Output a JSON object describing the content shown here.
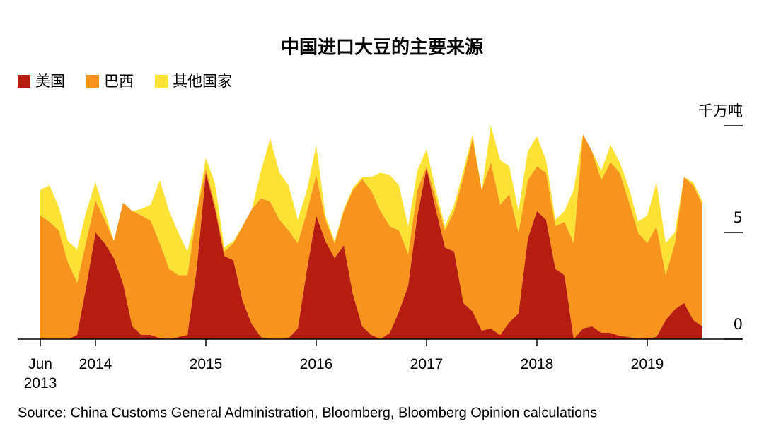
{
  "chart_data": {
    "type": "stacked_area",
    "title": "中国进口大豆的主要来源",
    "source": "Source: China Customs General Administration, Bloomberg, Bloomberg Opinion calculations",
    "legend": "top-left",
    "x": [
      2013.5,
      2013.583,
      2013.667,
      2013.75,
      2013.833,
      2013.917,
      2014,
      2014.083,
      2014.167,
      2014.25,
      2014.333,
      2014.417,
      2014.5,
      2014.583,
      2014.667,
      2014.75,
      2014.833,
      2014.917,
      2015,
      2015.083,
      2015.167,
      2015.25,
      2015.333,
      2015.417,
      2015.5,
      2015.583,
      2015.667,
      2015.75,
      2015.833,
      2015.917,
      2016,
      2016.083,
      2016.167,
      2016.25,
      2016.333,
      2016.417,
      2016.5,
      2016.583,
      2016.667,
      2016.75,
      2016.833,
      2016.917,
      2017,
      2017.083,
      2017.167,
      2017.25,
      2017.333,
      2017.417,
      2017.5,
      2017.583,
      2017.667,
      2017.75,
      2017.833,
      2017.917,
      2018,
      2018.083,
      2018.167,
      2018.25,
      2018.333,
      2018.417,
      2018.5,
      2018.583,
      2018.667,
      2018.75,
      2018.833,
      2018.917,
      2019,
      2019.083,
      2019.167,
      2019.25,
      2019.333,
      2019.417,
      2019.5
    ],
    "series": [
      {
        "name": "美国",
        "color": "#b51c12",
        "values": [
          0,
          0,
          0,
          0,
          0.2,
          2.5,
          5.0,
          4.5,
          3.8,
          2.6,
          0.6,
          0.2,
          0.2,
          0.05,
          0,
          0.1,
          0.2,
          3.3,
          7.8,
          6.1,
          3.9,
          3.7,
          1.8,
          0.7,
          0.1,
          0,
          0,
          0.05,
          0.5,
          3.3,
          5.8,
          4.6,
          3.8,
          4.4,
          2.1,
          0.6,
          0.2,
          0,
          0.3,
          1.3,
          2.5,
          5.8,
          8.0,
          6.1,
          4.3,
          4.1,
          1.7,
          1.3,
          0.4,
          0.5,
          0.2,
          0.8,
          1.2,
          4.7,
          6.0,
          5.6,
          3.3,
          3.0,
          0,
          0.5,
          0.6,
          0.3,
          0.3,
          0.15,
          0.1,
          0,
          0.05,
          0.1,
          0.9,
          1.4,
          1.7,
          0.9,
          0.6
        ]
      },
      {
        "name": "巴西",
        "color": "#f7941d",
        "values": [
          5.8,
          5.5,
          5.1,
          3.6,
          2.45,
          2.1,
          1.5,
          1.1,
          0.8,
          3.8,
          5.4,
          5.6,
          5.35,
          4.45,
          3.3,
          2.9,
          2.8,
          2.6,
          0.2,
          0.2,
          0.2,
          0.8,
          3.5,
          5.4,
          6.5,
          6.45,
          5.6,
          5.05,
          4.0,
          2.7,
          1.9,
          1.0,
          0.7,
          1.6,
          4.9,
          6.9,
          6.75,
          6.0,
          5.0,
          3.8,
          1.5,
          1.2,
          0.1,
          0.5,
          0.8,
          1.9,
          5.9,
          8.1,
          6.6,
          7.8,
          6.1,
          6.0,
          3.8,
          2.75,
          2.1,
          2.2,
          2.0,
          2.5,
          4.5,
          9.1,
          8.2,
          7.15,
          8.0,
          7.65,
          6.35,
          5.0,
          4.45,
          5.2,
          2.1,
          3.1,
          5.9,
          6.3,
          5.7
        ]
      },
      {
        "name": "其他国家",
        "color": "#fde236",
        "values": [
          1.2,
          1.7,
          1.1,
          1.0,
          1.55,
          1.4,
          0.85,
          0.4,
          0,
          0,
          0,
          0.3,
          0.75,
          2.95,
          2.7,
          2.0,
          1.1,
          0.1,
          0.5,
          1.0,
          0.2,
          0.1,
          0,
          0,
          1.3,
          2.95,
          2.2,
          2.1,
          1.1,
          1.0,
          1.4,
          0.2,
          0.1,
          0.1,
          0.1,
          0.1,
          0.65,
          1.8,
          2.4,
          2.1,
          1.3,
          0.9,
          0.8,
          0.4,
          0.2,
          0.3,
          0.3,
          0.2,
          0,
          1.7,
          2.1,
          1.3,
          1.0,
          1.35,
          1.4,
          0.6,
          0.3,
          0.5,
          2.5,
          0,
          0,
          0.45,
          0.8,
          0.5,
          0.65,
          0.5,
          1.3,
          2.05,
          1.5,
          0.5,
          0,
          0.15,
          0.15
        ]
      }
    ],
    "xlim": [
      2013.5,
      2019.5
    ],
    "xticks": [
      {
        "value": 2013.5,
        "label": "Jun 2013"
      },
      2014,
      2015,
      2016,
      2017,
      2018,
      2019
    ],
    "ylim": [
      0,
      10
    ],
    "yticks": [
      0,
      5,
      {
        "value": 10,
        "label": "千万吨"
      }
    ]
  }
}
